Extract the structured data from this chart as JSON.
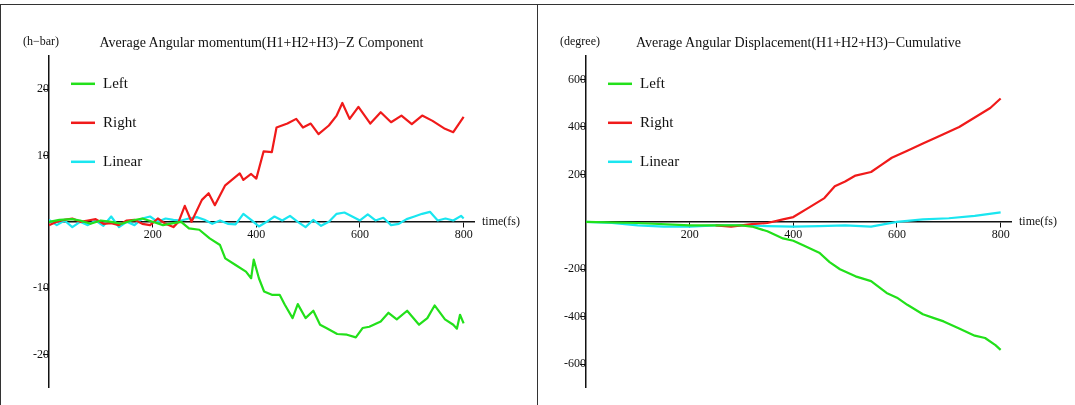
{
  "chart_data": [
    {
      "type": "line",
      "title": "Average Angular momentum(H1+H2+H3)−Z Component",
      "ylabel": "(h−bar)",
      "xlabel": "time(fs)",
      "xlim": [
        0,
        820
      ],
      "xticks": [
        200,
        400,
        600,
        800
      ],
      "ylim": [
        -25,
        25
      ],
      "yticks": [
        -20,
        -10,
        10,
        20
      ],
      "grid": false,
      "legend": "top left",
      "marker": "none",
      "line_style": "solid",
      "series": [
        {
          "name": "Left",
          "color": "#22e01a",
          "x": [
            0,
            20,
            45,
            60,
            80,
            100,
            120,
            140,
            160,
            180,
            200,
            220,
            240,
            255,
            270,
            290,
            310,
            330,
            340,
            360,
            380,
            390,
            395,
            405,
            415,
            430,
            445,
            455,
            470,
            480,
            495,
            510,
            523,
            535,
            556,
            575,
            592,
            605,
            618,
            640,
            655,
            671,
            691,
            714,
            730,
            744,
            764,
            780,
            787,
            793,
            800
          ],
          "values": [
            0,
            0.3,
            0.4,
            0.2,
            -0.3,
            0.2,
            0,
            -0.3,
            0.2,
            0.5,
            0,
            -0.5,
            -0.2,
            0,
            -1,
            -1.2,
            -2.5,
            -3.5,
            -5.5,
            -6.5,
            -7.5,
            -8.5,
            -5.7,
            -8.5,
            -10.5,
            -11,
            -11,
            -12.5,
            -14.5,
            -12.4,
            -14.5,
            -13.4,
            -15.5,
            -16,
            -16.9,
            -17,
            -17.4,
            -16,
            -15.8,
            -15,
            -13.7,
            -14.7,
            -13.4,
            -15.5,
            -14.5,
            -12.6,
            -14.7,
            -15.5,
            -16.1,
            -14,
            -15.3
          ]
        },
        {
          "name": "Right",
          "color": "#f01a1a",
          "x": [
            0,
            15,
            30,
            45,
            60,
            75,
            90,
            105,
            120,
            135,
            150,
            165,
            180,
            195,
            210,
            225,
            240,
            250,
            262,
            275,
            295,
            308,
            320,
            340,
            368,
            375,
            390,
            400,
            414,
            430,
            439,
            460,
            477,
            490,
            505,
            520,
            540,
            555,
            566,
            580,
            597,
            620,
            640,
            660,
            680,
            700,
            720,
            740,
            764,
            780,
            800
          ],
          "values": [
            -0.5,
            0,
            0.3,
            0.5,
            0,
            0.2,
            0.4,
            -0.3,
            -0.2,
            -0.5,
            0.2,
            0.3,
            -0.3,
            -0.5,
            0.5,
            -0.3,
            -0.8,
            0,
            2.4,
            0,
            3.3,
            4.3,
            2.5,
            5.5,
            7.3,
            6.3,
            7.2,
            6.5,
            10.6,
            10.5,
            14.2,
            14.8,
            15.5,
            14.2,
            14.8,
            13.2,
            14.5,
            16,
            17.9,
            15.5,
            17.3,
            14.8,
            16.5,
            15,
            16,
            14.7,
            16,
            15.2,
            14,
            13.5,
            15.8
          ]
        },
        {
          "name": "Linear",
          "color": "#1ae6f0",
          "x": [
            0,
            15,
            30,
            45,
            60,
            75,
            90,
            105,
            120,
            135,
            150,
            165,
            180,
            195,
            210,
            225,
            240,
            255,
            270,
            285,
            300,
            315,
            330,
            345,
            360,
            375,
            390,
            405,
            420,
            435,
            450,
            465,
            480,
            495,
            510,
            525,
            540,
            555,
            570,
            585,
            600,
            615,
            630,
            645,
            660,
            675,
            690,
            705,
            720,
            735,
            750,
            765,
            780,
            795,
            800
          ],
          "values": [
            0.3,
            -0.5,
            0.2,
            -0.8,
            0,
            -0.5,
            0.2,
            -0.6,
            0.8,
            -0.8,
            0,
            -0.5,
            0.5,
            0.8,
            0,
            0.5,
            0.3,
            0.2,
            0.5,
            0.7,
            0.3,
            -0.3,
            0.2,
            -0.3,
            -0.4,
            1.2,
            0.3,
            -0.7,
            0,
            0.8,
            0.2,
            0.9,
            0,
            -0.8,
            0.3,
            -0.6,
            0,
            1.2,
            1.4,
            0.8,
            0.2,
            1.1,
            0.2,
            0.6,
            -0.5,
            -0.3,
            0.4,
            0.8,
            1.2,
            1.5,
            0.2,
            0.5,
            0.2,
            0.9,
            0.5
          ]
        }
      ]
    },
    {
      "type": "line",
      "title": "Average Angular Displacement(H1+H2+H3)−Cumulative",
      "ylabel": "(degree)",
      "xlabel": "time(fs)",
      "xlim": [
        0,
        820
      ],
      "xticks": [
        200,
        400,
        600,
        800
      ],
      "ylim": [
        -700,
        700
      ],
      "yticks": [
        -600,
        -400,
        -200,
        200,
        400,
        600
      ],
      "grid": false,
      "legend": "top left",
      "marker": "none",
      "line_style": "solid",
      "series": [
        {
          "name": "Left",
          "color": "#22e01a",
          "x": [
            0,
            100,
            200,
            300,
            320,
            350,
            380,
            400,
            420,
            450,
            470,
            490,
            520,
            550,
            580,
            600,
            620,
            650,
            670,
            690,
            720,
            750,
            770,
            790,
            800
          ],
          "values": [
            0,
            -5,
            -15,
            -15,
            -20,
            -40,
            -70,
            -80,
            -100,
            -130,
            -170,
            -200,
            -230,
            -250,
            -300,
            -320,
            -350,
            -390,
            -405,
            -420,
            -450,
            -480,
            -490,
            -520,
            -540
          ]
        },
        {
          "name": "Right",
          "color": "#f01a1a",
          "x": [
            250,
            280,
            320,
            350,
            380,
            400,
            430,
            460,
            480,
            500,
            520,
            550,
            570,
            590,
            620,
            650,
            680,
            700,
            720,
            750,
            780,
            800
          ],
          "values": [
            -15,
            -20,
            -10,
            -5,
            10,
            20,
            60,
            100,
            150,
            170,
            195,
            210,
            240,
            270,
            300,
            330,
            360,
            380,
            400,
            440,
            480,
            520
          ]
        },
        {
          "name": "Linear",
          "color": "#1ae6f0",
          "x": [
            0,
            50,
            100,
            150,
            200,
            250,
            300,
            350,
            400,
            450,
            500,
            550,
            600,
            650,
            700,
            750,
            800
          ],
          "values": [
            0,
            -5,
            -15,
            -20,
            -20,
            -15,
            -15,
            -18,
            -20,
            -18,
            -15,
            -20,
            0,
            10,
            15,
            25,
            40
          ]
        }
      ]
    }
  ]
}
